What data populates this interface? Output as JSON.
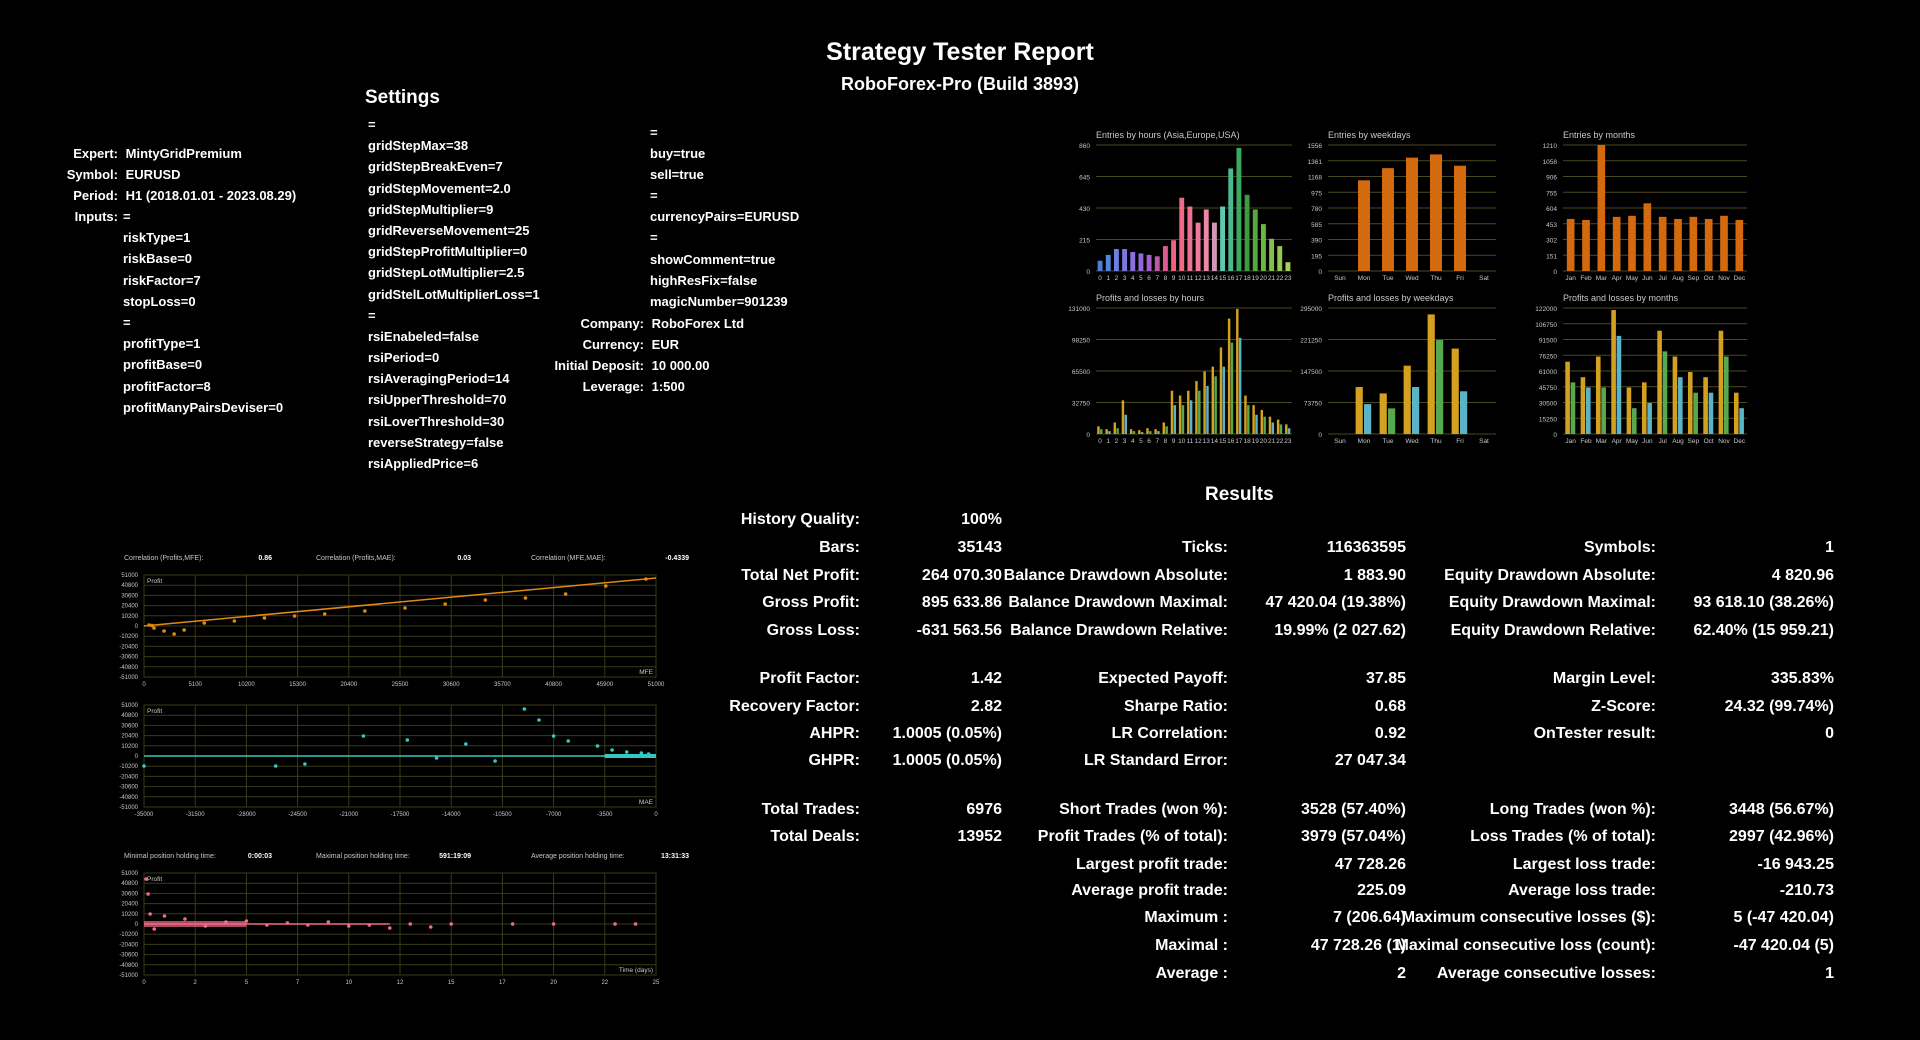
{
  "report": {
    "title": "Strategy Tester Report",
    "server": "RoboForex-Pro (Build 3893)"
  },
  "settings": {
    "heading": "Settings",
    "expert_label": "Expert:",
    "expert": "MintyGridPremium",
    "symbol_label": "Symbol:",
    "symbol": "EURUSD",
    "period_label": "Period:",
    "period": "H1 (2018.01.01 - 2023.08.29)",
    "inputs_label": "Inputs:",
    "col1": [
      "=",
      "riskType=1",
      "riskBase=0",
      "riskFactor=7",
      "stopLoss=0",
      "=",
      "profitType=1",
      "profitBase=0",
      "profitFactor=8",
      "profitManyPairsDeviser=0"
    ],
    "col2": [
      "=",
      "gridStepMax=38",
      "gridStepBreakEven=7",
      "gridStepMovement=2.0",
      "gridStepMultiplier=9",
      "gridReverseMovement=25",
      "gridStepProfitMultiplier=0",
      "gridStepLotMultiplier=2.5",
      "gridStelLotMultiplierLoss=1",
      "=",
      "rsiEnabeled=false",
      "rsiPeriod=0",
      "rsiAveragingPeriod=14",
      "rsiUpperThreshold=70",
      "rsiLoverThreshold=30",
      "reverseStrategy=false",
      "rsiAppliedPrice=6"
    ],
    "col3": [
      "=",
      "buy=true",
      "sell=true",
      "=",
      "currencyPairs=EURUSD",
      "=",
      "showComment=true",
      "highResFix=false",
      "magicNumber=901239"
    ],
    "company_label": "Company:",
    "company": "RoboForex Ltd",
    "currency_label": "Currency:",
    "currency": "EUR",
    "deposit_label": "Initial Deposit:",
    "deposit": "10 000.00",
    "leverage_label": "Leverage:",
    "leverage": "1:500"
  },
  "results": {
    "heading": "Results",
    "c1": [
      {
        "k": "History Quality:",
        "v": "100%"
      },
      {
        "k": "Bars:",
        "v": "35143"
      },
      {
        "k": "Total Net Profit:",
        "v": "264 070.30"
      },
      {
        "k": "Gross Profit:",
        "v": "895 633.86"
      },
      {
        "k": "Gross Loss:",
        "v": "-631 563.56"
      },
      {
        "k": "Profit Factor:",
        "v": "1.42"
      },
      {
        "k": "Recovery Factor:",
        "v": "2.82"
      },
      {
        "k": "AHPR:",
        "v": "1.0005 (0.05%)"
      },
      {
        "k": "GHPR:",
        "v": "1.0005 (0.05%)"
      },
      {
        "k": "Total Trades:",
        "v": "6976"
      },
      {
        "k": "Total Deals:",
        "v": "13952"
      }
    ],
    "c2": [
      {
        "k": "Ticks:",
        "v": "116363595"
      },
      {
        "k": "Balance Drawdown Absolute:",
        "v": "1 883.90"
      },
      {
        "k": "Balance Drawdown Maximal:",
        "v": "47 420.04 (19.38%)"
      },
      {
        "k": "Balance Drawdown Relative:",
        "v": "19.99% (2 027.62)"
      },
      {
        "k": "Expected Payoff:",
        "v": "37.85"
      },
      {
        "k": "Sharpe Ratio:",
        "v": "0.68"
      },
      {
        "k": "LR Correlation:",
        "v": "0.92"
      },
      {
        "k": "LR Standard Error:",
        "v": "27 047.34"
      },
      {
        "k": "Short Trades (won %):",
        "v": "3528 (57.40%)"
      },
      {
        "k": "Profit Trades (% of total):",
        "v": "3979 (57.04%)"
      },
      {
        "k": "Largest profit trade:",
        "v": "47 728.26"
      },
      {
        "k": "Average profit trade:",
        "v": "225.09"
      },
      {
        "k": "Maximum :",
        "v": "7 (206.64)"
      },
      {
        "k": "Maximal :",
        "v": "47 728.26 (1)"
      },
      {
        "k": "Average :",
        "v": "2"
      }
    ],
    "c3": [
      {
        "k": "Symbols:",
        "v": "1"
      },
      {
        "k": "Equity Drawdown Absolute:",
        "v": "4 820.96"
      },
      {
        "k": "Equity Drawdown Maximal:",
        "v": "93 618.10 (38.26%)"
      },
      {
        "k": "Equity Drawdown Relative:",
        "v": "62.40% (15 959.21)"
      },
      {
        "k": "Margin Level:",
        "v": "335.83%"
      },
      {
        "k": "Z-Score:",
        "v": "24.32 (99.74%)"
      },
      {
        "k": "OnTester result:",
        "v": "0"
      },
      {
        "k": "Long Trades (won %):",
        "v": "3448 (56.67%)"
      },
      {
        "k": "Loss Trades (% of total):",
        "v": "2997 (42.96%)"
      },
      {
        "k": "Largest loss trade:",
        "v": "-16 943.25"
      },
      {
        "k": "Average loss trade:",
        "v": "-210.73"
      },
      {
        "k": "Maximum consecutive losses ($):",
        "v": "5 (-47 420.04)"
      },
      {
        "k": "Maximal consecutive loss (count):",
        "v": "-47 420.04 (5)"
      },
      {
        "k": "Average consecutive losses:",
        "v": "1"
      }
    ]
  },
  "chart_data": [
    {
      "type": "bar",
      "title": "Entries by hours (Asia,Europe,USA)",
      "categories": [
        "0",
        "1",
        "2",
        "3",
        "4",
        "5",
        "6",
        "7",
        "8",
        "9",
        "10",
        "11",
        "12",
        "13",
        "14",
        "15",
        "16",
        "17",
        "18",
        "19",
        "20",
        "21",
        "22",
        "23"
      ],
      "values": [
        70,
        110,
        150,
        150,
        130,
        120,
        110,
        100,
        170,
        210,
        500,
        440,
        330,
        420,
        330,
        440,
        700,
        840,
        520,
        420,
        320,
        220,
        170,
        60
      ],
      "yticks": [
        "0",
        "215",
        "430",
        "645",
        "860"
      ],
      "ymax": 860
    },
    {
      "type": "bar",
      "title": "Entries by weekdays",
      "categories": [
        "Sun",
        "Mon",
        "Tue",
        "Wed",
        "Thu",
        "Fri",
        "Sat"
      ],
      "values": [
        0,
        1120,
        1270,
        1400,
        1440,
        1300,
        0
      ],
      "yticks": [
        "0",
        "195",
        "390",
        "585",
        "780",
        "975",
        "1168",
        "1361",
        "1556"
      ],
      "ymax": 1556
    },
    {
      "type": "bar",
      "title": "Entries by months",
      "categories": [
        "Jan",
        "Feb",
        "Mar",
        "Apr",
        "May",
        "Jun",
        "Jul",
        "Aug",
        "Sep",
        "Oct",
        "Nov",
        "Dec"
      ],
      "values": [
        500,
        490,
        1210,
        520,
        530,
        650,
        520,
        500,
        520,
        500,
        530,
        490
      ],
      "yticks": [
        "0",
        "151",
        "302",
        "453",
        "604",
        "755",
        "906",
        "1058",
        "1210"
      ],
      "ymax": 1210
    },
    {
      "type": "bar",
      "title": "Profits and losses by hours",
      "categories": [
        "0",
        "1",
        "2",
        "3",
        "4",
        "5",
        "6",
        "7",
        "8",
        "9",
        "10",
        "11",
        "12",
        "13",
        "14",
        "15",
        "16",
        "17",
        "18",
        "19",
        "20",
        "21",
        "22",
        "23"
      ],
      "series": [
        {
          "values": [
            8000,
            5000,
            12000,
            35000,
            5000,
            4000,
            6000,
            5000,
            12000,
            45000,
            40000,
            45000,
            55000,
            65000,
            70000,
            90000,
            120000,
            130000,
            40000,
            30000,
            25000,
            18000,
            15000,
            10000
          ]
        },
        {
          "values": [
            5000,
            3000,
            6000,
            20000,
            3000,
            2000,
            3000,
            3000,
            8000,
            30000,
            30000,
            35000,
            45000,
            50000,
            60000,
            70000,
            95000,
            100000,
            30000,
            20000,
            18000,
            12000,
            10000,
            6000
          ]
        }
      ],
      "yticks": [
        "0",
        "32750",
        "65500",
        "98250",
        "131000"
      ],
      "ymax": 131000
    },
    {
      "type": "bar",
      "title": "Profits and losses by weekdays",
      "categories": [
        "Sun",
        "Mon",
        "Tue",
        "Wed",
        "Thu",
        "Fri",
        "Sat"
      ],
      "series": [
        {
          "values": [
            0,
            110000,
            95000,
            160000,
            280000,
            200000,
            0
          ]
        },
        {
          "values": [
            0,
            70000,
            60000,
            110000,
            220000,
            100000,
            0
          ]
        }
      ],
      "yticks": [
        "0",
        "73750",
        "147500",
        "221250",
        "295000"
      ],
      "ymax": 295000
    },
    {
      "type": "bar",
      "title": "Profits and losses by months",
      "categories": [
        "Jan",
        "Feb",
        "Mar",
        "Apr",
        "May",
        "Jun",
        "Jul",
        "Aug",
        "Sep",
        "Oct",
        "Nov",
        "Dec"
      ],
      "series": [
        {
          "values": [
            70000,
            55000,
            75000,
            120000,
            45000,
            50000,
            100000,
            75000,
            60000,
            55000,
            100000,
            40000
          ]
        },
        {
          "values": [
            50000,
            45000,
            45000,
            95000,
            25000,
            30000,
            80000,
            55000,
            40000,
            40000,
            75000,
            25000
          ]
        }
      ],
      "yticks": [
        "0",
        "15250",
        "30500",
        "45750",
        "61000",
        "76250",
        "91500",
        "106750",
        "122000"
      ],
      "ymax": 122000
    },
    {
      "type": "scatter",
      "title": "Profit",
      "xlabel": "MFE",
      "xticks": [
        "0",
        "5100",
        "10200",
        "15300",
        "20400",
        "25500",
        "30600",
        "35700",
        "40800",
        "45900",
        "51000"
      ],
      "yticks": [
        "51000",
        "40800",
        "30600",
        "20400",
        "10200",
        "0",
        "-10200",
        "-20400",
        "-30600",
        "-40800",
        "-51000"
      ],
      "ymax": 51000,
      "points": [
        [
          500,
          1000
        ],
        [
          1000,
          -2000
        ],
        [
          2000,
          -5000
        ],
        [
          3000,
          -8000
        ],
        [
          4000,
          -4000
        ],
        [
          800,
          500
        ],
        [
          6000,
          3000
        ],
        [
          9000,
          5000
        ],
        [
          12000,
          8000
        ],
        [
          15000,
          10000
        ],
        [
          18000,
          12000
        ],
        [
          22000,
          15000
        ],
        [
          26000,
          18000
        ],
        [
          30000,
          22000
        ],
        [
          34000,
          26000
        ],
        [
          38000,
          28000
        ],
        [
          42000,
          32000
        ],
        [
          46000,
          40000
        ],
        [
          50000,
          47000
        ]
      ],
      "header": [
        {
          "k": "Correlation (Profits,MFE):",
          "v": "0.86"
        },
        {
          "k": "Correlation (Profits,MAE):",
          "v": "0.03"
        },
        {
          "k": "Correlation (MFE,MAE):",
          "v": "-0.4339"
        }
      ]
    },
    {
      "type": "scatter",
      "title": "Profit",
      "xlabel": "MAE",
      "xticks": [
        "-35000",
        "-31500",
        "-28000",
        "-24500",
        "-21000",
        "-17500",
        "-14000",
        "-10500",
        "-7000",
        "-3500",
        "0"
      ],
      "yticks": [
        "51000",
        "40800",
        "30600",
        "20400",
        "10200",
        "0",
        "-10200",
        "-20400",
        "-30600",
        "-40800",
        "-51000"
      ],
      "ymax": 51000,
      "points": [
        [
          -35000,
          -10000
        ],
        [
          -26000,
          -10000
        ],
        [
          -24000,
          -8000
        ],
        [
          -20000,
          20000
        ],
        [
          -17000,
          16000
        ],
        [
          -15000,
          -2000
        ],
        [
          -13000,
          12000
        ],
        [
          -11000,
          -5000
        ],
        [
          -9000,
          47000
        ],
        [
          -8000,
          36000
        ],
        [
          -7000,
          20000
        ],
        [
          -6000,
          15000
        ],
        [
          -4000,
          10000
        ],
        [
          -3000,
          6000
        ],
        [
          -2000,
          4000
        ],
        [
          -1000,
          3000
        ],
        [
          -500,
          2000
        ]
      ]
    },
    {
      "type": "scatter",
      "title": "Profit",
      "xlabel": "Time (days)",
      "xticks": [
        "0",
        "2",
        "5",
        "7",
        "10",
        "12",
        "15",
        "17",
        "20",
        "22",
        "25"
      ],
      "yticks": [
        "51000",
        "40800",
        "30600",
        "20400",
        "10200",
        "0",
        "-10200",
        "-20400",
        "-30600",
        "-40800",
        "-51000"
      ],
      "ymax": 51000,
      "points": [
        [
          0.1,
          45000
        ],
        [
          0.2,
          30000
        ],
        [
          0.3,
          10000
        ],
        [
          0.5,
          -5000
        ],
        [
          1,
          8000
        ],
        [
          2,
          5000
        ],
        [
          3,
          -2000
        ],
        [
          4,
          2000
        ],
        [
          5,
          3000
        ],
        [
          6,
          -1000
        ],
        [
          7,
          1000
        ],
        [
          8,
          -1000
        ],
        [
          9,
          2000
        ],
        [
          10,
          -2000
        ],
        [
          11,
          -1000
        ],
        [
          12,
          -4000
        ],
        [
          13,
          0
        ],
        [
          14,
          -3000
        ],
        [
          15,
          0
        ],
        [
          18,
          0
        ],
        [
          20,
          0
        ],
        [
          23,
          0
        ],
        [
          24,
          0
        ]
      ],
      "header": [
        {
          "k": "Minimal position holding time:",
          "v": "0:00:03"
        },
        {
          "k": "Maximal position holding time:",
          "v": "591:19:09"
        },
        {
          "k": "Average position holding time:",
          "v": "13:31:33"
        }
      ]
    }
  ]
}
